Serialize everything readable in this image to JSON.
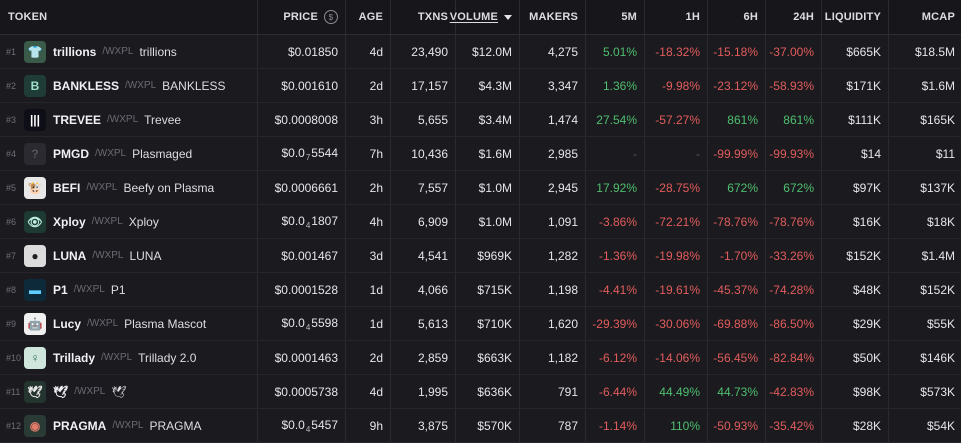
{
  "headers": {
    "token": "TOKEN",
    "price": "PRICE",
    "price_icon": "$",
    "age": "AGE",
    "txns": "TXNS",
    "volume": "VOLUME",
    "makers": "MAKERS",
    "m5": "5M",
    "h1": "1H",
    "h6": "6H",
    "h24": "24H",
    "liquidity": "LIQUIDITY",
    "mcap": "MCAP"
  },
  "sort": {
    "column": "volume",
    "direction": "desc"
  },
  "colors": {
    "positive": "#4fbf6f",
    "negative": "#e25c5c",
    "background": "#1b1b1f"
  },
  "rows": [
    {
      "rank": "#1",
      "symbol": "trillions",
      "pair": "/WXPL",
      "name": "trillions",
      "logo": {
        "icon": "tshirt-icon",
        "glyph": "👕",
        "bg": "#3a5a4a",
        "fg": "#cfe8d8"
      },
      "price": "$0.01850",
      "price_main": "",
      "price_sub": "",
      "price_tail": "",
      "age": "4d",
      "txns": "23,490",
      "volume": "$12.0M",
      "makers": "4,275",
      "m5": "5.01%",
      "h1": "-18.32%",
      "h6": "-15.18%",
      "h24": "-37.00%",
      "liquidity": "$665K",
      "mcap": "$18.5M",
      "m5_dir": "pos",
      "h1_dir": "neg",
      "h6_dir": "neg",
      "h24_dir": "neg"
    },
    {
      "rank": "#2",
      "symbol": "BANKLESS",
      "pair": "/WXPL",
      "name": "BANKLESS",
      "logo": {
        "icon": "bankless-b-icon",
        "glyph": "B",
        "bg": "#1f3d36",
        "fg": "#9fe0c8"
      },
      "price": "$0.001610",
      "price_main": "",
      "price_sub": "",
      "price_tail": "",
      "age": "2d",
      "txns": "17,157",
      "volume": "$4.3M",
      "makers": "3,347",
      "m5": "1.36%",
      "h1": "-9.98%",
      "h6": "-23.12%",
      "h24": "-58.93%",
      "liquidity": "$171K",
      "mcap": "$1.6M",
      "m5_dir": "pos",
      "h1_dir": "neg",
      "h6_dir": "neg",
      "h24_dir": "neg"
    },
    {
      "rank": "#3",
      "symbol": "TREVEE",
      "pair": "/WXPL",
      "name": "Trevee",
      "logo": {
        "icon": "trevee-bars-icon",
        "glyph": "|||",
        "bg": "#0e0e16",
        "fg": "#ffffff"
      },
      "price": "$0.0008008",
      "price_main": "",
      "price_sub": "",
      "price_tail": "",
      "age": "3h",
      "txns": "5,655",
      "volume": "$3.4M",
      "makers": "1,474",
      "m5": "27.54%",
      "h1": "-57.27%",
      "h6": "861%",
      "h24": "861%",
      "liquidity": "$111K",
      "mcap": "$165K",
      "m5_dir": "pos",
      "h1_dir": "neg",
      "h6_dir": "pos",
      "h24_dir": "pos"
    },
    {
      "rank": "#4",
      "symbol": "PMGD",
      "pair": "/WXPL",
      "name": "Plasmaged",
      "logo": {
        "icon": "placeholder-icon",
        "glyph": "?",
        "bg": "#2a2a30",
        "fg": "#55555e"
      },
      "price": "",
      "price_main": "$0.0",
      "price_sub": "7",
      "price_tail": "5544",
      "age": "7h",
      "txns": "10,436",
      "volume": "$1.6M",
      "makers": "2,985",
      "m5": "-",
      "h1": "-",
      "h6": "-99.99%",
      "h24": "-99.93%",
      "liquidity": "$14",
      "mcap": "$11",
      "m5_dir": "muted",
      "h1_dir": "muted",
      "h6_dir": "neg",
      "h24_dir": "neg"
    },
    {
      "rank": "#5",
      "symbol": "BEFI",
      "pair": "/WXPL",
      "name": "Beefy on Plasma",
      "logo": {
        "icon": "cow-icon",
        "glyph": "🐮",
        "bg": "#e8e8e8",
        "fg": "#111111"
      },
      "price": "$0.0006661",
      "price_main": "",
      "price_sub": "",
      "price_tail": "",
      "age": "2h",
      "txns": "7,557",
      "volume": "$1.0M",
      "makers": "2,945",
      "m5": "17.92%",
      "h1": "-28.75%",
      "h6": "672%",
      "h24": "672%",
      "liquidity": "$97K",
      "mcap": "$137K",
      "m5_dir": "pos",
      "h1_dir": "neg",
      "h6_dir": "pos",
      "h24_dir": "pos"
    },
    {
      "rank": "#6",
      "symbol": "Xploy",
      "pair": "/WXPL",
      "name": "Xploy",
      "logo": {
        "icon": "eye-icon",
        "glyph": "👁",
        "bg": "#1d3a33",
        "fg": "#bff0e0"
      },
      "price": "",
      "price_main": "$0.0",
      "price_sub": "4",
      "price_tail": "1807",
      "age": "4h",
      "txns": "6,909",
      "volume": "$1.0M",
      "makers": "1,091",
      "m5": "-3.86%",
      "h1": "-72.21%",
      "h6": "-78.76%",
      "h24": "-78.76%",
      "liquidity": "$16K",
      "mcap": "$18K",
      "m5_dir": "neg",
      "h1_dir": "neg",
      "h6_dir": "neg",
      "h24_dir": "neg"
    },
    {
      "rank": "#7",
      "symbol": "LUNA",
      "pair": "/WXPL",
      "name": "LUNA",
      "logo": {
        "icon": "avatar-icon",
        "glyph": "●",
        "bg": "#dcdcdc",
        "fg": "#222222"
      },
      "price": "$0.001467",
      "price_main": "",
      "price_sub": "",
      "price_tail": "",
      "age": "3d",
      "txns": "4,541",
      "volume": "$969K",
      "makers": "1,282",
      "m5": "-1.36%",
      "h1": "-19.98%",
      "h6": "-1.70%",
      "h24": "-33.26%",
      "liquidity": "$152K",
      "mcap": "$1.4M",
      "m5_dir": "neg",
      "h1_dir": "neg",
      "h6_dir": "neg",
      "h24_dir": "neg"
    },
    {
      "rank": "#8",
      "symbol": "P1",
      "pair": "/WXPL",
      "name": "P1",
      "logo": {
        "icon": "p1-logo-icon",
        "glyph": "▬",
        "bg": "#0d2a3a",
        "fg": "#5fd0ff"
      },
      "price": "$0.0001528",
      "price_main": "",
      "price_sub": "",
      "price_tail": "",
      "age": "1d",
      "txns": "4,066",
      "volume": "$715K",
      "makers": "1,198",
      "m5": "-4.41%",
      "h1": "-19.61%",
      "h6": "-45.37%",
      "h24": "-74.28%",
      "liquidity": "$48K",
      "mcap": "$152K",
      "m5_dir": "neg",
      "h1_dir": "neg",
      "h6_dir": "neg",
      "h24_dir": "neg"
    },
    {
      "rank": "#9",
      "symbol": "Lucy",
      "pair": "/WXPL",
      "name": "Plasma Mascot",
      "logo": {
        "icon": "robot-icon",
        "glyph": "🤖",
        "bg": "#f0f0f0",
        "fg": "#222222"
      },
      "price": "",
      "price_main": "$0.0",
      "price_sub": "4",
      "price_tail": "5598",
      "age": "1d",
      "txns": "5,613",
      "volume": "$710K",
      "makers": "1,620",
      "m5": "-29.39%",
      "h1": "-30.06%",
      "h6": "-69.88%",
      "h24": "-86.50%",
      "liquidity": "$29K",
      "mcap": "$55K",
      "m5_dir": "neg",
      "h1_dir": "neg",
      "h6_dir": "neg",
      "h24_dir": "neg"
    },
    {
      "rank": "#10",
      "symbol": "Trillady",
      "pair": "/WXPL",
      "name": "Trillady 2.0",
      "logo": {
        "icon": "lady-avatar-icon",
        "glyph": "♀",
        "bg": "#cfe6dc",
        "fg": "#2d6b55"
      },
      "price": "$0.0001463",
      "price_main": "",
      "price_sub": "",
      "price_tail": "",
      "age": "2d",
      "txns": "2,859",
      "volume": "$663K",
      "makers": "1,182",
      "m5": "-6.12%",
      "h1": "-14.06%",
      "h6": "-56.45%",
      "h24": "-82.84%",
      "liquidity": "$50K",
      "mcap": "$146K",
      "m5_dir": "neg",
      "h1_dir": "neg",
      "h6_dir": "neg",
      "h24_dir": "neg"
    },
    {
      "rank": "#11",
      "symbol": "🕊",
      "pair": "/WXPL",
      "name": "🕊",
      "logo": {
        "icon": "dove-icon",
        "glyph": "🕊",
        "bg": "#24342e",
        "fg": "#e8e8e8"
      },
      "price": "$0.0005738",
      "price_main": "",
      "price_sub": "",
      "price_tail": "",
      "age": "4d",
      "txns": "1,995",
      "volume": "$636K",
      "makers": "791",
      "m5": "-6.44%",
      "h1": "44.49%",
      "h6": "44.73%",
      "h24": "-42.83%",
      "liquidity": "$98K",
      "mcap": "$573K",
      "m5_dir": "neg",
      "h1_dir": "pos",
      "h6_dir": "pos",
      "h24_dir": "neg"
    },
    {
      "rank": "#12",
      "symbol": "PRAGMA",
      "pair": "/WXPL",
      "name": "PRAGMA",
      "logo": {
        "icon": "pragma-circle-icon",
        "glyph": "◉",
        "bg": "#2a3a34",
        "fg": "#e07a6a"
      },
      "price": "",
      "price_main": "$0.0",
      "price_sub": "4",
      "price_tail": "5457",
      "age": "9h",
      "txns": "3,875",
      "volume": "$570K",
      "makers": "787",
      "m5": "-1.14%",
      "h1": "110%",
      "h6": "-50.93%",
      "h24": "-35.42%",
      "liquidity": "$28K",
      "mcap": "$54K",
      "m5_dir": "neg",
      "h1_dir": "pos",
      "h6_dir": "neg",
      "h24_dir": "neg"
    }
  ]
}
